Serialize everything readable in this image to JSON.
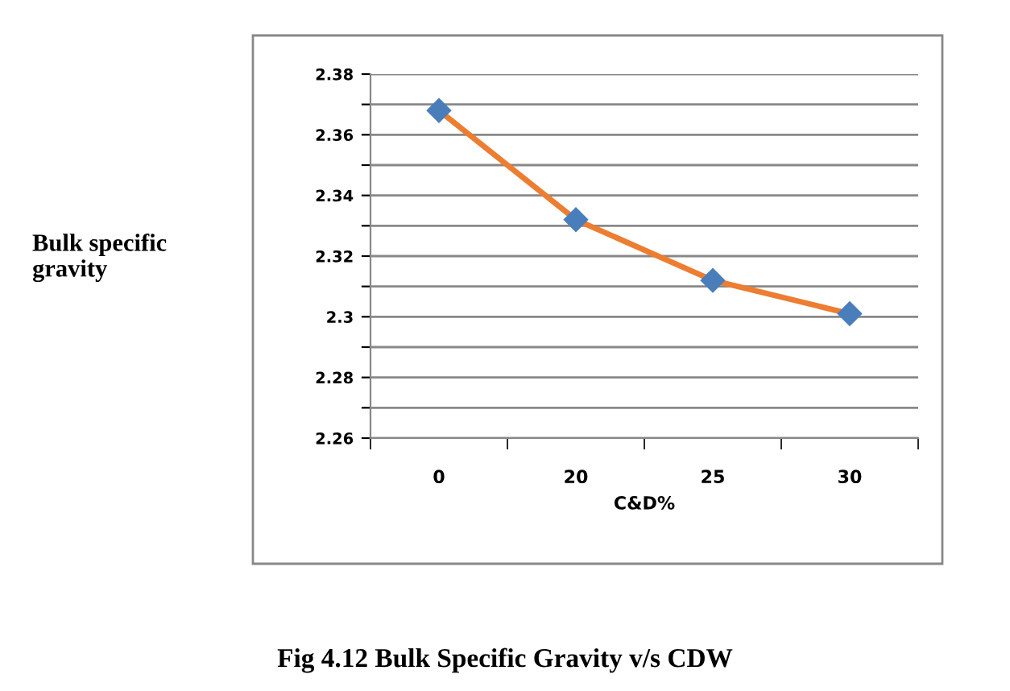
{
  "chart_data": {
    "type": "line",
    "title": "Fig 4.12 Bulk Specific Gravity v/s CDW",
    "xlabel": "C&D%",
    "annotations": [
      "Bulk specific\ngravity"
    ],
    "categories": [
      "0",
      "20",
      "25",
      "30"
    ],
    "series": [
      {
        "color": "#ed7d31",
        "values": [
          2.368,
          2.332,
          2.312,
          2.301
        ]
      }
    ],
    "marker": "diamond",
    "ylim": [
      2.26,
      2.38
    ],
    "yticks": [
      2.26,
      {
        "value": 2.27,
        "label": null
      },
      2.28,
      {
        "value": 2.29,
        "label": null
      },
      2.3,
      {
        "value": 2.31,
        "label": null
      },
      2.32,
      {
        "value": 2.33,
        "label": null
      },
      2.34,
      {
        "value": 2.35,
        "label": null
      },
      2.36,
      {
        "value": 2.37,
        "label": null
      },
      2.38
    ],
    "grid": "y"
  }
}
